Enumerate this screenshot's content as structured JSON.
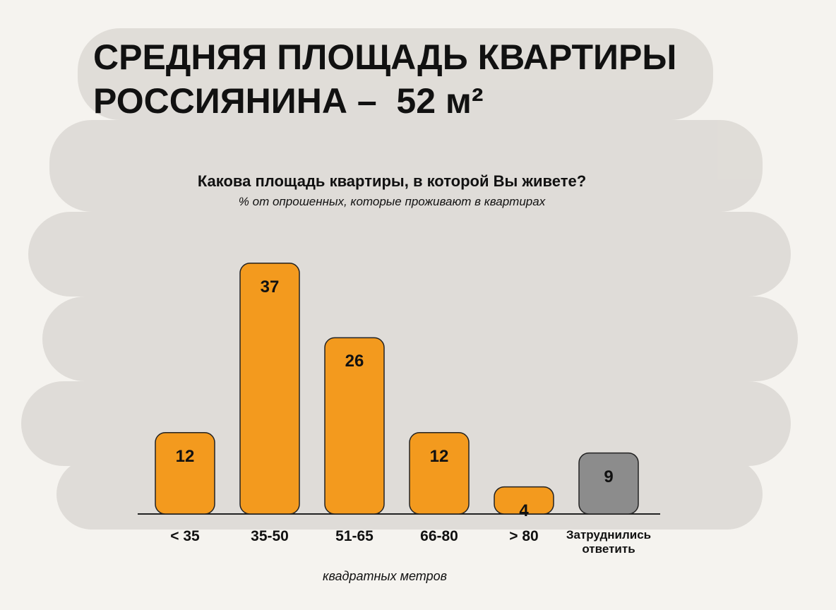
{
  "chart_data": {
    "type": "bar",
    "title": "СРЕДНЯЯ ПЛОЩАДЬ КВАРТИРЫ РОССИЯНИНА –  52 м²",
    "subtitle": "Какова площадь квартиры, в которой Вы живете?",
    "note": "% от опрошенных, которые проживают в квартирах",
    "x_label": "квадратных метров",
    "categories": [
      "< 35",
      "35-50",
      "51-65",
      "66-80",
      "> 80",
      "Затруднились ответить"
    ],
    "values": [
      12,
      37,
      26,
      12,
      4,
      9
    ],
    "colors": [
      "#f39a1e",
      "#f39a1e",
      "#f39a1e",
      "#f39a1e",
      "#f39a1e",
      "#8c8c8c"
    ]
  }
}
